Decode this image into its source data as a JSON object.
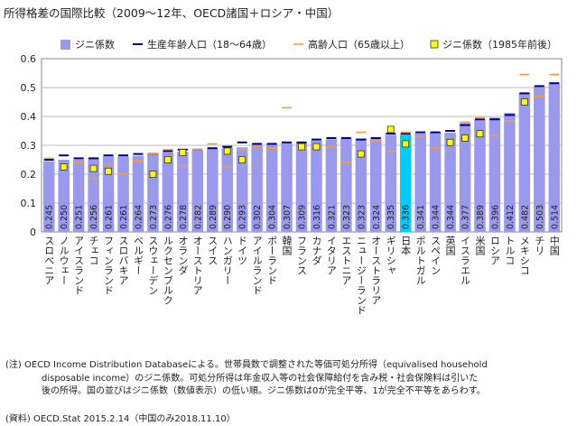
{
  "title": "所得格差の国際比較（2009～12年、OECD諸国＋ロシア・中国）",
  "chart_data": {
    "type": "bar",
    "ylim": [
      0,
      0.6
    ],
    "yticks": [
      "0",
      "0.1",
      "0.2",
      "0.3",
      "0.4",
      "0.5",
      "0.6"
    ],
    "legend_placement": "top",
    "grid": "horizontal",
    "colors": {
      "bar": "#9999ee",
      "highlight": "#00ccff",
      "working": "#000080",
      "elderly": "#ff9933",
      "marker": "#ffff00"
    },
    "legend": {
      "gini": "ジニ係数",
      "working": "生産年齢人口（18～64歳）",
      "elderly": "高齢人口（65歳以上）",
      "gini1985": "ジニ係数（1985年前後）"
    },
    "categories": [
      "スロベニア",
      "ノルウェー",
      "アイスランド",
      "チェコ",
      "フィンランド",
      "スロバキア",
      "ベルギー",
      "スウェーデン",
      "ルクセンブルク",
      "オランダ",
      "オーストリア",
      "スイス",
      "ハンガリー",
      "ドイツ",
      "アイルランド",
      "ポーランド",
      "韓国",
      "フランス",
      "カナダ",
      "イタリア",
      "エストニア",
      "ニュージーランド",
      "オーストラリア",
      "ギリシャ",
      "日本",
      "ポルトガル",
      "スペイン",
      "英国",
      "イスラエル",
      "米国",
      "ロシア",
      "トルコ",
      "メキシコ",
      "チリ",
      "中国"
    ],
    "values": [
      0.245,
      0.25,
      0.251,
      0.256,
      0.261,
      0.261,
      0.264,
      0.273,
      0.276,
      0.278,
      0.282,
      0.289,
      0.29,
      0.293,
      0.302,
      0.304,
      0.307,
      0.309,
      0.316,
      0.321,
      0.323,
      0.323,
      0.324,
      0.335,
      0.336,
      0.341,
      0.344,
      0.344,
      0.377,
      0.389,
      0.396,
      0.412,
      0.482,
      0.503,
      0.514
    ],
    "value_labels": [
      "0.245",
      "0.250",
      "0.251",
      "0.256",
      "0.261",
      "0.261",
      "0.264",
      "0.273",
      "0.276",
      "0.278",
      "0.282",
      "0.289",
      "0.290",
      "0.293",
      "0.302",
      "0.304",
      "0.307",
      "0.309",
      "0.316",
      "0.321",
      "0.323",
      "0.323",
      "0.324",
      "0.335",
      "0.336",
      "0.341",
      "0.344",
      "0.344",
      "0.377",
      "0.389",
      "0.396",
      "0.412",
      "0.482",
      "0.503",
      "0.514"
    ],
    "highlight_index": 24,
    "working_age": [
      0.25,
      0.265,
      0.255,
      0.255,
      0.265,
      0.265,
      0.27,
      0.27,
      0.28,
      0.285,
      0.285,
      0.29,
      0.295,
      0.31,
      0.305,
      0.305,
      0.31,
      0.31,
      0.32,
      0.325,
      0.325,
      0.32,
      0.325,
      0.34,
      0.34,
      0.345,
      0.345,
      0.35,
      0.37,
      0.39,
      0.39,
      0.405,
      0.48,
      0.505,
      0.515
    ],
    "elderly": [
      0.255,
      0.23,
      0.24,
      0.185,
      0.235,
      0.2,
      0.245,
      0.27,
      0.285,
      0.23,
      0.285,
      0.305,
      0.225,
      0.285,
      0.295,
      0.29,
      0.43,
      0.29,
      0.295,
      0.295,
      0.24,
      0.345,
      0.315,
      0.28,
      0.345,
      0.33,
      0.29,
      0.315,
      0.38,
      0.395,
      0.335,
      0.385,
      0.545,
      0.47,
      0.545
    ],
    "gini1985": [
      null,
      0.225,
      null,
      0.22,
      0.21,
      null,
      null,
      0.2,
      0.25,
      0.275,
      null,
      null,
      0.28,
      0.25,
      null,
      null,
      null,
      0.295,
      0.295,
      null,
      null,
      0.27,
      null,
      0.355,
      0.305,
      null,
      null,
      0.31,
      0.325,
      0.34,
      null,
      null,
      0.45,
      null,
      null
    ]
  },
  "notes": [
    "(注) OECD Income Distribution Databaseによる。世帯員数で調整された等価可処分所得（equivalised household",
    "disposable income）のジニ係数。可処分所得は年金収入等の社会保障給付を含み税・社会保険料は引いた",
    "後の所得。国の並びはジニ係数（数値表示）の低い順。ジニ係数は0が完全平等、1が完全不平等をあらわす。"
  ],
  "source": "(資料) OECD.Stat 2015.2.14（中国のみ2018.11.10）"
}
